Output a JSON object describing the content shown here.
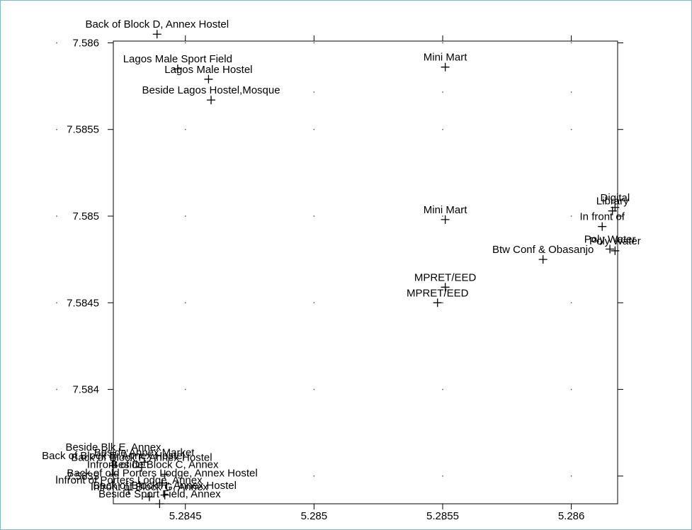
{
  "chart_data": {
    "type": "scatter",
    "labels": [
      "Back of Block D, Annex Hostel",
      "Lagos Male Sport Field",
      "Lagos Male Hostel",
      "Beside Lagos Hostel,Mosque",
      "Mini Mart",
      "Mini Mart",
      "Digital",
      "Library",
      "In front of",
      "Poly Water",
      "Poly Water",
      "Btw Conf & Obasanjo",
      "MPRET/EED",
      "MPRET/EED",
      "Beside Blk E, Annex",
      "Back of Block E, Annex Hostel",
      "Beside Annex Market",
      "Back of Block F, Annex Hostel",
      "Infront of D",
      "Beside Block C, Annex",
      "Back of old Porters Lodge, Annex Hostel",
      "Infront of Porters Lodge, Annex",
      "Infront of Block G, Annex",
      "Back of Block H, Annex Hostel",
      "Beside Sport Field, Annex"
    ],
    "x": [
      5.28439,
      5.28447,
      5.28459,
      5.2846,
      5.28551,
      5.28551,
      5.28617,
      5.28616,
      5.28612,
      5.28615,
      5.28617,
      5.28589,
      5.28551,
      5.28548,
      5.28422,
      5.28422,
      5.28434,
      5.28433,
      5.28422,
      5.28442,
      5.28441,
      5.28428,
      5.28436,
      5.28442,
      5.2844
    ],
    "y": [
      7.58605,
      7.58585,
      7.58579,
      7.58567,
      7.58586,
      7.58498,
      7.58505,
      7.58503,
      7.58494,
      7.58481,
      7.5848,
      7.58475,
      7.58459,
      7.5845,
      7.58361,
      7.58356,
      7.58358,
      7.58355,
      7.58351,
      7.58351,
      7.58346,
      7.58342,
      7.58338,
      7.58339,
      7.58334
    ],
    "color": "#000000",
    "xlim": [
      5.28422,
      5.28618
    ],
    "ylim": [
      7.58334,
      7.58601
    ],
    "xticks": [
      5.2845,
      5.285,
      5.2855,
      5.286
    ],
    "yticks": [
      7.5835,
      7.584,
      7.5845,
      7.585,
      7.5855,
      7.586
    ],
    "grid": "dots"
  }
}
